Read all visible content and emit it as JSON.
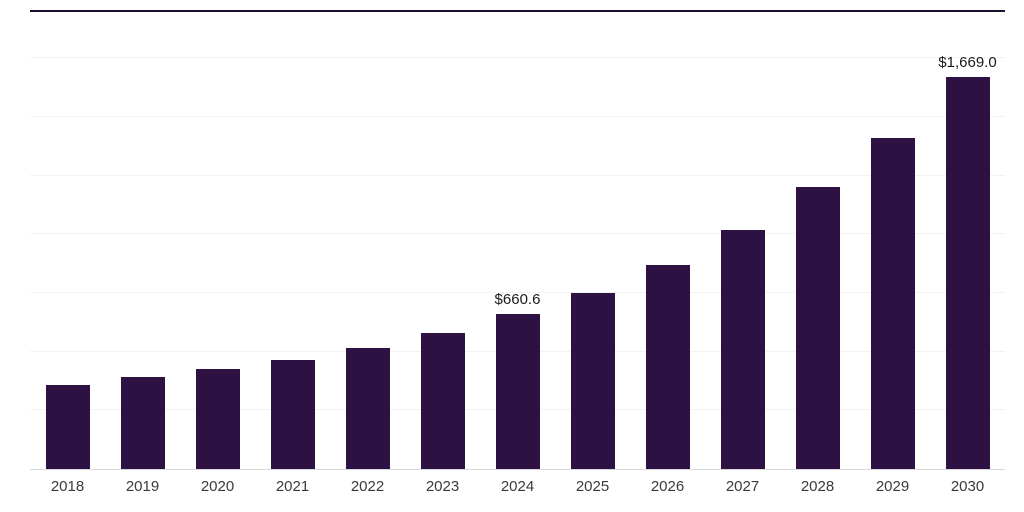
{
  "chart_data": {
    "type": "bar",
    "title": "",
    "xlabel": "",
    "ylabel": "",
    "categories": [
      "2018",
      "2019",
      "2020",
      "2021",
      "2022",
      "2023",
      "2024",
      "2025",
      "2026",
      "2027",
      "2028",
      "2029",
      "2030"
    ],
    "values": [
      360,
      390,
      425,
      465,
      515,
      580,
      660.6,
      750,
      870,
      1020,
      1200,
      1410,
      1669.0
    ],
    "data_labels": {
      "2024": "$660.6",
      "2030": "$1,669.0"
    },
    "ylim": [
      0,
      1960
    ],
    "gridline_interval": 250,
    "grid": true,
    "legend": false,
    "bar_color": "#2e1143",
    "baseline_color": "#d8d8d8",
    "gridline_color": "#f2f2f2",
    "top_rule_color": "#1c0f2e"
  }
}
